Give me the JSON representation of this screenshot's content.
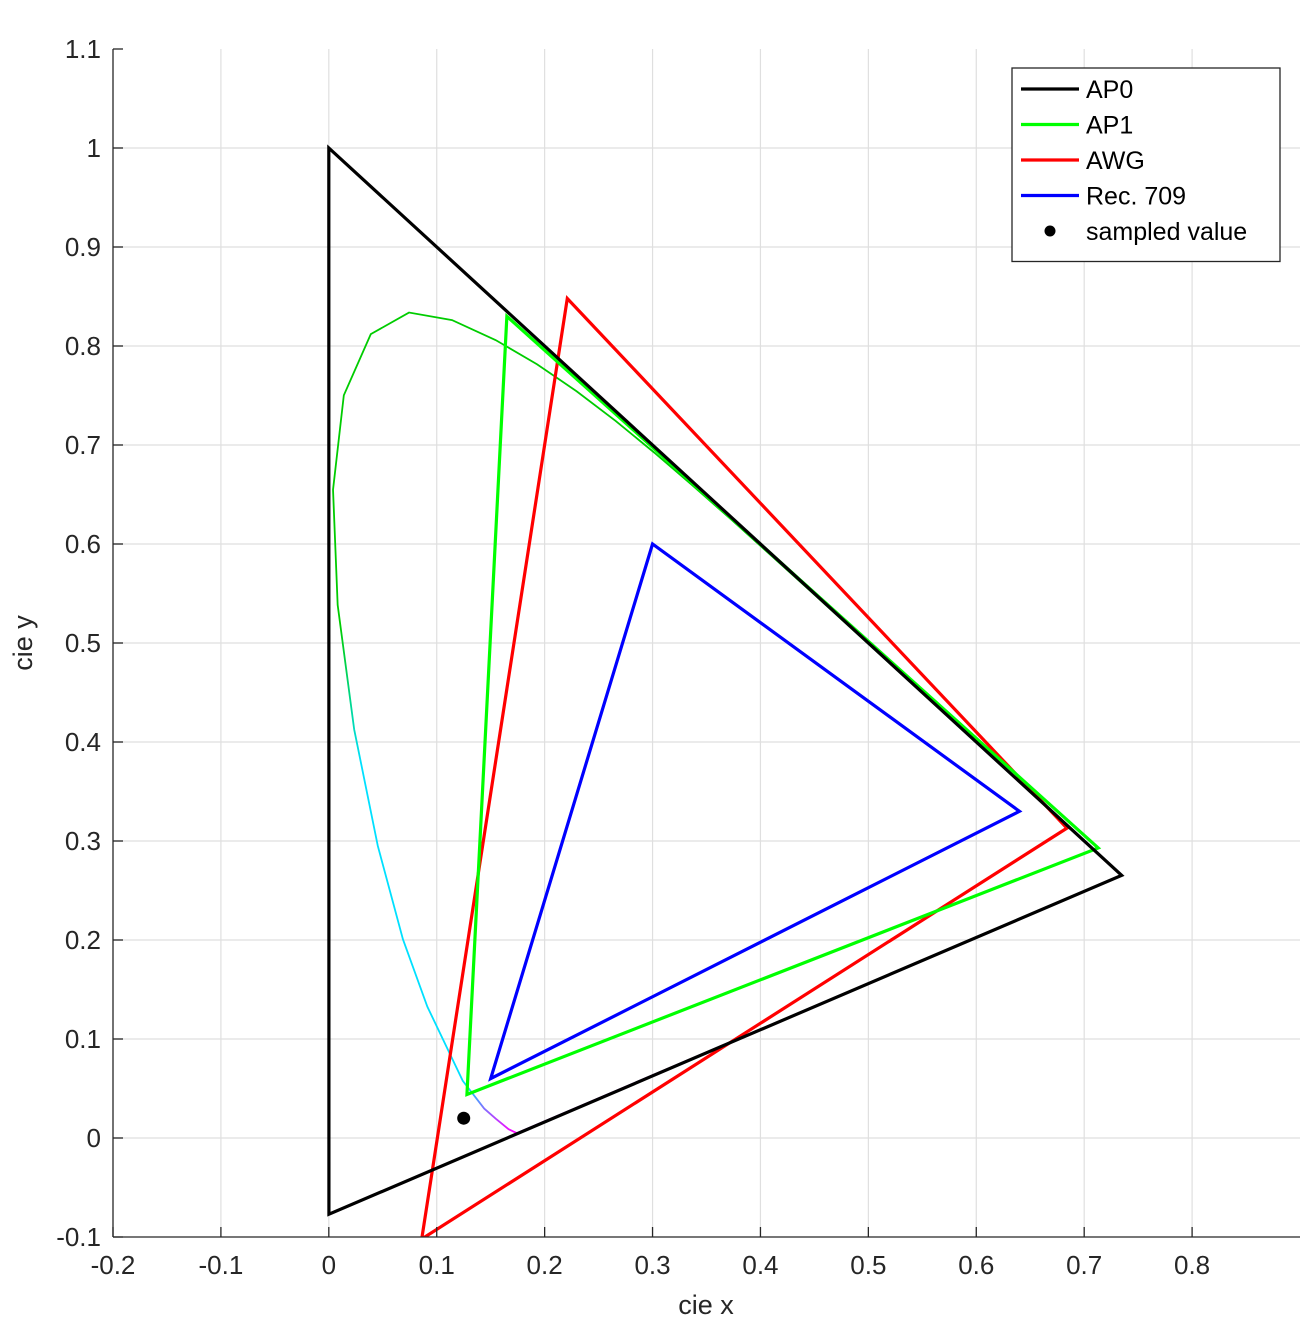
{
  "chart_data": {
    "type": "line",
    "title": "",
    "xlabel": "cie x",
    "ylabel": "cie y",
    "xlim": [
      -0.2,
      0.9
    ],
    "ylim": [
      -0.1,
      1.1
    ],
    "xticks": [
      -0.2,
      -0.1,
      0,
      0.1,
      0.2,
      0.3,
      0.4,
      0.5,
      0.6,
      0.7,
      0.8
    ],
    "xtick_labels": [
      "-0.2",
      "-0.1",
      "0",
      "0.1",
      "0.2",
      "0.3",
      "0.4",
      "0.5",
      "0.6",
      "0.7",
      "0.8"
    ],
    "yticks": [
      -0.1,
      0,
      0.1,
      0.2,
      0.3,
      0.4,
      0.5,
      0.6,
      0.7,
      0.8,
      0.9,
      1.0,
      1.1
    ],
    "ytick_labels": [
      "-0.1",
      "0",
      "0.1",
      "0.2",
      "0.3",
      "0.4",
      "0.5",
      "0.6",
      "0.7",
      "0.8",
      "0.9",
      "1",
      "1.1"
    ],
    "grid": true,
    "legend_position": "top-right",
    "series": [
      {
        "name": "AP0",
        "color": "#000000",
        "closed": true,
        "points": [
          [
            0.7347,
            0.2653
          ],
          [
            0.0,
            1.0
          ],
          [
            0.0001,
            -0.077
          ]
        ]
      },
      {
        "name": "AP1",
        "color": "#00ff00",
        "closed": true,
        "points": [
          [
            0.713,
            0.293
          ],
          [
            0.165,
            0.83
          ],
          [
            0.128,
            0.044
          ]
        ]
      },
      {
        "name": "AWG",
        "color": "#ff0000",
        "closed": true,
        "points": [
          [
            0.684,
            0.313
          ],
          [
            0.221,
            0.848
          ],
          [
            0.0861,
            -0.102
          ]
        ]
      },
      {
        "name": "Rec. 709",
        "color": "#0000ff",
        "closed": true,
        "points": [
          [
            0.64,
            0.33
          ],
          [
            0.3,
            0.6
          ],
          [
            0.15,
            0.06
          ]
        ]
      }
    ],
    "points": [
      {
        "name": "sampled value",
        "color": "#000000",
        "x": 0.125,
        "y": 0.02
      }
    ],
    "spectral_locus": {
      "colors": [
        "#ff00ff",
        "#00e0ff",
        "#00cc00"
      ],
      "points": [
        [
          0.1741,
          0.005
        ],
        [
          0.1666,
          0.0089
        ],
        [
          0.1547,
          0.0195
        ],
        [
          0.144,
          0.0297
        ],
        [
          0.1241,
          0.0578
        ],
        [
          0.0913,
          0.1327
        ],
        [
          0.0687,
          0.2007
        ],
        [
          0.0454,
          0.295
        ],
        [
          0.0235,
          0.4127
        ],
        [
          0.0082,
          0.5384
        ],
        [
          0.0039,
          0.6548
        ],
        [
          0.0139,
          0.7502
        ],
        [
          0.0389,
          0.812
        ],
        [
          0.0743,
          0.8338
        ],
        [
          0.1142,
          0.8262
        ],
        [
          0.1547,
          0.8059
        ],
        [
          0.1929,
          0.7816
        ],
        [
          0.2296,
          0.7543
        ],
        [
          0.2658,
          0.7243
        ],
        [
          0.3016,
          0.6923
        ],
        [
          0.3373,
          0.6589
        ],
        [
          0.3731,
          0.6245
        ],
        [
          0.4087,
          0.5896
        ],
        [
          0.4441,
          0.5547
        ],
        [
          0.4788,
          0.5202
        ],
        [
          0.5125,
          0.4866
        ],
        [
          0.5448,
          0.4544
        ],
        [
          0.5752,
          0.4242
        ],
        [
          0.6029,
          0.3965
        ],
        [
          0.627,
          0.3725
        ],
        [
          0.6482,
          0.3514
        ],
        [
          0.6658,
          0.334
        ],
        [
          0.6801,
          0.3197
        ],
        [
          0.6915,
          0.3083
        ],
        [
          0.7006,
          0.2993
        ],
        [
          0.7079,
          0.292
        ],
        [
          0.714,
          0.2859
        ],
        [
          0.719,
          0.2809
        ],
        [
          0.723,
          0.277
        ],
        [
          0.726,
          0.274
        ],
        [
          0.7283,
          0.2717
        ],
        [
          0.73,
          0.27
        ],
        [
          0.732,
          0.268
        ],
        [
          0.7334,
          0.2666
        ],
        [
          0.7347,
          0.2653
        ]
      ]
    },
    "purple_line": {
      "color": "#aa00ff",
      "points": [
        [
          0.7347,
          0.2653
        ],
        [
          0.1741,
          0.005
        ]
      ]
    }
  }
}
